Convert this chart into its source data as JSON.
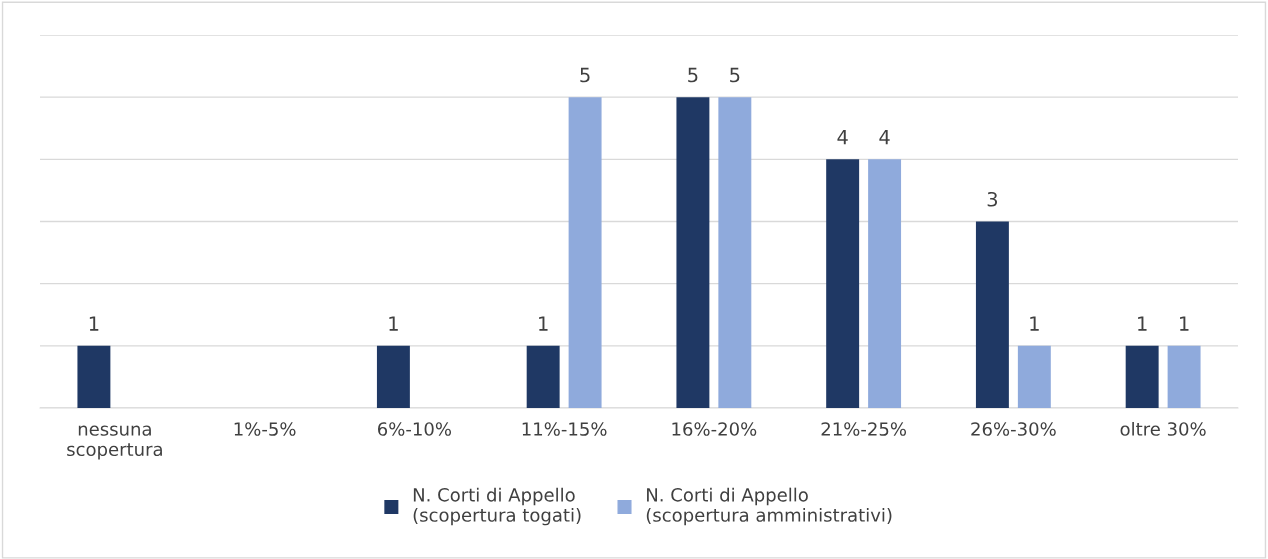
{
  "chart_data": {
    "type": "bar",
    "categories": [
      "nessuna\nscopertura",
      "1%-5%",
      "6%-10%",
      "11%-15%",
      "16%-20%",
      "21%-25%",
      "26%-30%",
      "oltre 30%"
    ],
    "series": [
      {
        "name": "N. Corti di Appello\n(scopertura togati)",
        "color": "#1f3864",
        "values": [
          1,
          null,
          1,
          1,
          5,
          4,
          3,
          1
        ]
      },
      {
        "name": "N. Corti di Appello\n(scopertura amministrativi)",
        "color": "#8faadc",
        "values": [
          null,
          null,
          null,
          5,
          5,
          4,
          1,
          1
        ]
      }
    ],
    "ylim": [
      0,
      6
    ],
    "yticks": [
      {
        "value": 0,
        "label": null
      },
      {
        "value": 1,
        "label": null
      },
      {
        "value": 2,
        "label": null
      },
      {
        "value": 3,
        "label": null
      },
      {
        "value": 4,
        "label": null
      },
      {
        "value": 5,
        "label": null
      },
      {
        "value": 6,
        "label": null
      }
    ],
    "grid": "y",
    "tick_labels": "x",
    "data_labels": true,
    "legend": "bottom"
  }
}
